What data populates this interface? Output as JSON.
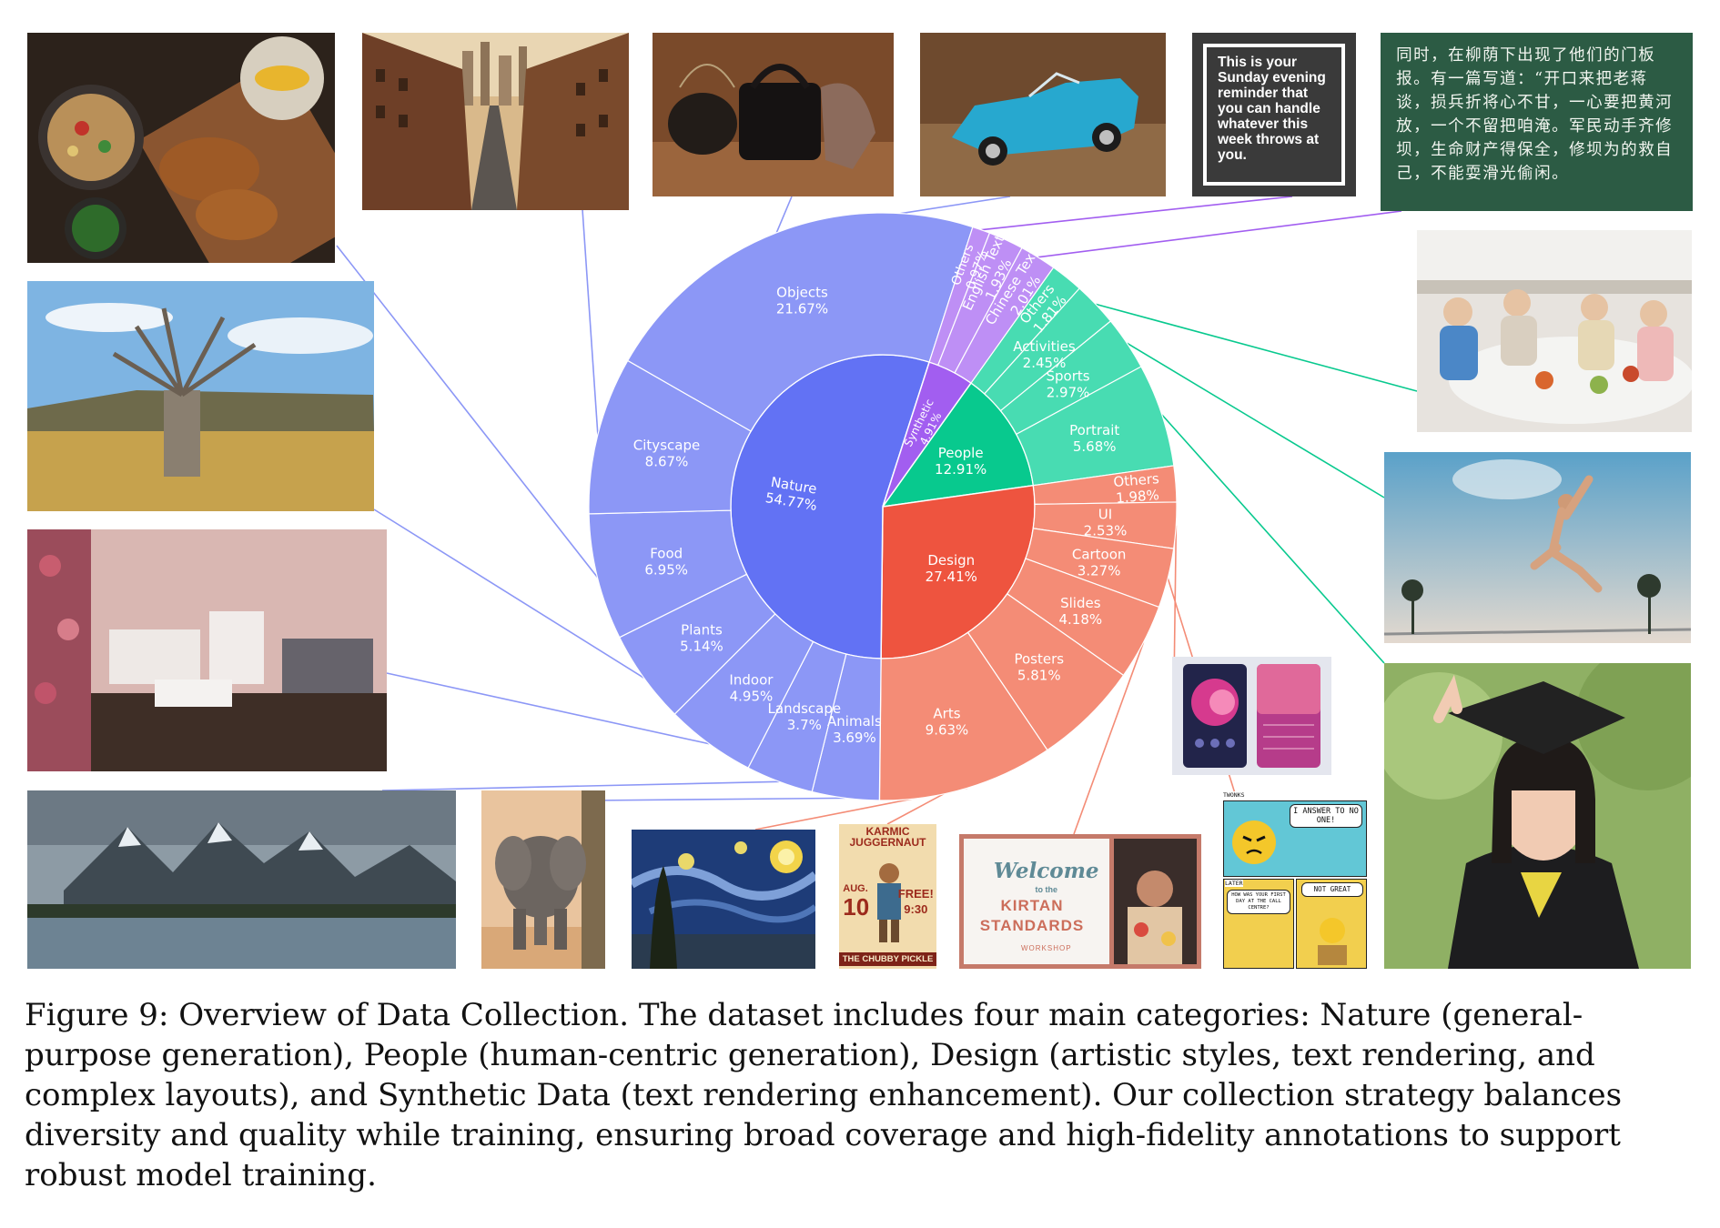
{
  "figure": {
    "caption": "Figure 9: Overview of Data Collection. The dataset includes four main categories: Nature (general-purpose generation), People (human-centric generation), Design (artistic styles, text rendering, and complex layouts), and Synthetic Data (text rendering enhancement). Our collection strategy balances diversity and quality while training, ensuring broad coverage and high-fidelity annotations to support robust model training."
  },
  "chart_data": {
    "type": "sunburst",
    "unit": "%",
    "start_angle_deg": 35.5,
    "direction": "clockwise",
    "colors": {
      "Nature": {
        "inner": "#6272f4",
        "outer": "#8c97f6"
      },
      "Design": {
        "inner": "#ee543f",
        "outer": "#f48c76"
      },
      "People": {
        "inner": "#08c98e",
        "outer": "#48dcb2"
      },
      "Synthetic": {
        "inner": "#a25ef0",
        "outer": "#be8ff5"
      }
    },
    "categories": [
      {
        "name": "People",
        "value": 12.91,
        "children": [
          {
            "name": "Others",
            "value": 1.81
          },
          {
            "name": "Activities",
            "value": 2.45
          },
          {
            "name": "Sports",
            "value": 2.97
          },
          {
            "name": "Portrait",
            "value": 5.68
          }
        ]
      },
      {
        "name": "Design",
        "value": 27.41,
        "children": [
          {
            "name": "Others",
            "value": 1.98
          },
          {
            "name": "UI",
            "value": 2.53
          },
          {
            "name": "Cartoon",
            "value": 3.27
          },
          {
            "name": "Slides",
            "value": 4.18
          },
          {
            "name": "Posters",
            "value": 5.81
          },
          {
            "name": "Arts",
            "value": 9.63
          }
        ]
      },
      {
        "name": "Nature",
        "value": 54.77,
        "children": [
          {
            "name": "Animals",
            "value": 3.69
          },
          {
            "name": "Landscape",
            "value": 3.7
          },
          {
            "name": "Indoor",
            "value": 4.95
          },
          {
            "name": "Plants",
            "value": 5.14
          },
          {
            "name": "Food",
            "value": 6.95
          },
          {
            "name": "Cityscape",
            "value": 8.67
          },
          {
            "name": "Objects",
            "value": 21.67
          }
        ]
      },
      {
        "name": "Synthetic",
        "value": 4.91,
        "children": [
          {
            "name": "Others",
            "value": 0.97
          },
          {
            "name": "English Text",
            "value": 1.93
          },
          {
            "name": "Chinese Text",
            "value": 2.01
          }
        ]
      }
    ]
  },
  "thumbnails": {
    "food": {
      "icon": "food-photo"
    },
    "cityscape": {
      "icon": "city-street-photo"
    },
    "objects": {
      "icon": "bags-photo"
    },
    "toy_car": {
      "icon": "toy-car-photo"
    },
    "sign": {
      "icon": "text-sign",
      "text": "This is your Sunday evening reminder that you can handle whatever this week throws at you."
    },
    "chalkboard": {
      "icon": "chinese-chalkboard",
      "text": "同时，在柳荫下出现了他们的门板报。有一篇写道：“开口来把老蒋谈，损兵折将心不甘，一心要把黄河放，一个不留把咱淹。军民动手齐修坝，生命财产得保全，修坝为的救自己，不能耍滑光偷闲。"
    },
    "family": {
      "icon": "family-dinner-photo"
    },
    "tree": {
      "icon": "baobab-tree-photo"
    },
    "basketball": {
      "icon": "basketball-dunk-photo"
    },
    "indoor": {
      "icon": "bedroom-interior-photo"
    },
    "ui": {
      "icon": "mobile-ui-screens"
    },
    "graduate": {
      "icon": "graduate-portrait-photo"
    },
    "mountains": {
      "icon": "mountain-lake-photo"
    },
    "elephant": {
      "icon": "elephant-photo"
    },
    "starry": {
      "icon": "starry-night-painting"
    },
    "poster": {
      "icon": "poster-art",
      "title": "KARMIC JUGGERNAUT",
      "month": "AUG.",
      "day": "10",
      "free": "FREE!",
      "time": "9:30",
      "footer": "THE CHUBBY PICKLE"
    },
    "slide": {
      "icon": "welcome-slide",
      "title": "Welcome",
      "to": "to the",
      "name": "KIRTAN STANDARDS",
      "sub": "WORKSHOP"
    },
    "cartoon": {
      "icon": "cartoon-comic",
      "author": "TWONKS",
      "bubble1": "I ANSWER TO NO ONE!",
      "later": "LATER",
      "bubble2": "HOW WAS YOUR FIRST DAY AT THE CALL CENTRE?",
      "bubble3": "NOT GREAT"
    }
  }
}
